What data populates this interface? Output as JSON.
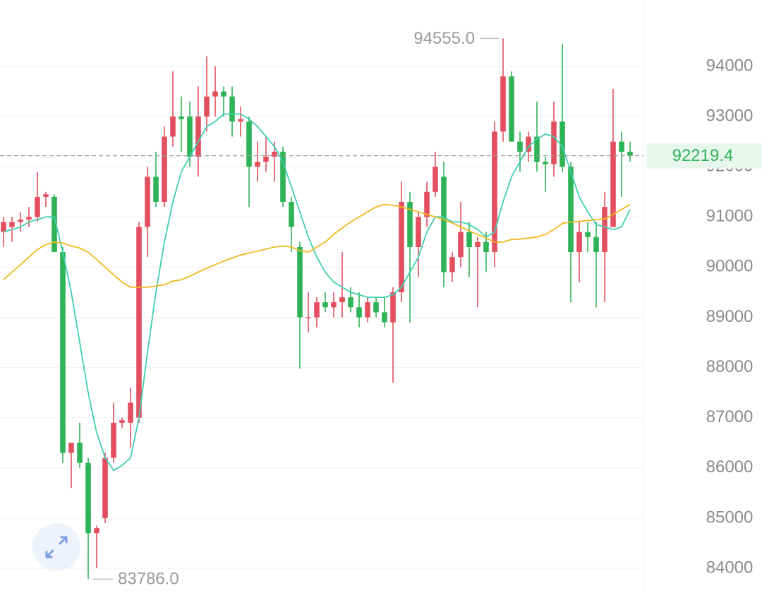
{
  "chart_data": {
    "type": "candlestick",
    "up_color": "#e2505f",
    "down_color": "#2eb356",
    "ylim": [
      83508,
      95322
    ],
    "yticks": [
      84000,
      85000,
      86000,
      87000,
      88000,
      89000,
      90000,
      91000,
      92000,
      93000,
      94000
    ],
    "grid": true,
    "open": [
      90700,
      90800,
      90900,
      90950,
      91000,
      91400,
      91400,
      90300,
      86300,
      86500,
      86100,
      84700,
      85000,
      86200,
      86900,
      86900,
      87000,
      90800,
      91800,
      91300,
      92600,
      93000,
      93000,
      92200,
      93000,
      93400,
      93500,
      93400,
      92900,
      92900,
      92000,
      92100,
      92200,
      92300,
      91300,
      90400,
      89000,
      89000,
      89300,
      89200,
      89300,
      89400,
      89200,
      89000,
      89300,
      89100,
      88900,
      89500,
      91300,
      90400,
      91000,
      91500,
      91800,
      89900,
      90200,
      90700,
      90400,
      90500,
      90300,
      92700,
      93800,
      92500,
      92300,
      92600,
      92100,
      92050,
      92900,
      92000,
      90300,
      90700,
      90600,
      90300,
      90800,
      92500,
      92300
    ],
    "high": [
      91000,
      91000,
      91100,
      91200,
      91900,
      91500,
      91450,
      90400,
      86500,
      86900,
      86200,
      84850,
      86300,
      87300,
      87000,
      87600,
      90900,
      92000,
      92300,
      92800,
      93900,
      93400,
      93300,
      93600,
      94200,
      94000,
      93600,
      93600,
      93200,
      93000,
      92500,
      92600,
      92500,
      92400,
      91400,
      90500,
      89500,
      89400,
      89500,
      89500,
      90300,
      89600,
      89500,
      89400,
      89400,
      89400,
      89600,
      91700,
      91500,
      91100,
      91700,
      92300,
      92100,
      90300,
      91300,
      90900,
      90600,
      90700,
      92900,
      94555,
      93900,
      92700,
      92700,
      93300,
      92200,
      93300,
      94450,
      92100,
      90900,
      90900,
      90900,
      91500,
      93550,
      92700,
      92500
    ],
    "low": [
      90400,
      90500,
      90700,
      90800,
      90900,
      91200,
      90300,
      86100,
      85600,
      86000,
      83786,
      84000,
      84900,
      86100,
      86800,
      86400,
      86900,
      90200,
      91200,
      91200,
      92400,
      92300,
      92000,
      91800,
      92700,
      93000,
      93000,
      92600,
      92600,
      91200,
      91700,
      91900,
      91700,
      91200,
      90300,
      87980,
      88700,
      88800,
      89100,
      89000,
      89000,
      89100,
      88800,
      88900,
      89000,
      88800,
      87700,
      89300,
      88900,
      89800,
      90800,
      91400,
      89600,
      89700,
      90000,
      89800,
      89200,
      89900,
      90000,
      92500,
      92500,
      91900,
      92100,
      91900,
      91500,
      91800,
      91900,
      89300,
      89700,
      90300,
      89200,
      89300,
      90800,
      91400,
      92100
    ],
    "close": [
      90900,
      90900,
      90950,
      91000,
      91400,
      91450,
      90300,
      86300,
      86500,
      86100,
      84700,
      84800,
      86200,
      86900,
      86950,
      87300,
      90800,
      91800,
      91300,
      92600,
      93000,
      92950,
      92200,
      93000,
      93400,
      93500,
      93400,
      92900,
      92950,
      92000,
      92100,
      92200,
      92300,
      91300,
      90800,
      89000,
      89000,
      89300,
      89200,
      89300,
      89400,
      89200,
      89000,
      89300,
      89100,
      88900,
      89500,
      91300,
      90400,
      91000,
      91500,
      92000,
      89900,
      90200,
      90700,
      90400,
      90500,
      90300,
      92700,
      93800,
      92500,
      92300,
      92600,
      92100,
      92050,
      92900,
      92000,
      90300,
      90700,
      90600,
      90300,
      91200,
      92500,
      92300,
      92219.4
    ],
    "series": [
      {
        "color": "#3fcfb0",
        "values": [
          90700,
          90750,
          90800,
          90900,
          90950,
          91000,
          91000,
          90300,
          89500,
          88500,
          87500,
          86700,
          86200,
          85950,
          86050,
          86200,
          87000,
          88300,
          89500,
          90500,
          91300,
          91900,
          92200,
          92500,
          92800,
          92900,
          93050,
          93050,
          93050,
          92950,
          92800,
          92600,
          92400,
          92100,
          91600,
          91100,
          90600,
          90200,
          89900,
          89700,
          89600,
          89500,
          89450,
          89400,
          89400,
          89400,
          89450,
          89600,
          89900,
          90200,
          90700,
          91000,
          91000,
          90900,
          90900,
          90850,
          90750,
          90600,
          90700,
          91300,
          91800,
          92100,
          92400,
          92550,
          92650,
          92600,
          92400,
          91900,
          91400,
          91100,
          90850,
          90800,
          90750,
          90800,
          91150
        ]
      },
      {
        "color": "#f0b81e",
        "values": [
          89750,
          89900,
          90050,
          90200,
          90350,
          90450,
          90500,
          90480,
          90420,
          90380,
          90300,
          90150,
          90000,
          89850,
          89700,
          89600,
          89600,
          89600,
          89620,
          89650,
          89720,
          89750,
          89820,
          89900,
          89980,
          90050,
          90120,
          90180,
          90240,
          90280,
          90320,
          90360,
          90400,
          90420,
          90400,
          90330,
          90300,
          90400,
          90500,
          90650,
          90780,
          90900,
          91000,
          91100,
          91200,
          91250,
          91230,
          91200,
          91150,
          91100,
          91050,
          91000,
          90950,
          90880,
          90800,
          90720,
          90650,
          90580,
          90500,
          90500,
          90550,
          90560,
          90580,
          90600,
          90650,
          90750,
          90870,
          90900,
          90910,
          90930,
          90950,
          90960,
          91050,
          91150,
          91250
        ]
      }
    ],
    "last_price": 92219.4,
    "high_label": {
      "value": 94555,
      "label": "94555.0"
    },
    "low_label": {
      "value": 83786,
      "label": "83786.0"
    }
  }
}
